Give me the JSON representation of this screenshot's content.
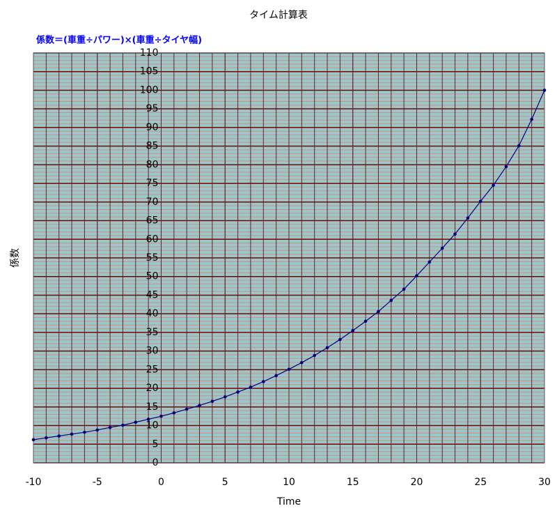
{
  "chart_data": {
    "type": "line",
    "title": "タイム計算表",
    "subtitle": "係数＝(車重÷パワー)×(車重÷タイヤ幅)",
    "x_label": "Time",
    "y_label": "係数",
    "x": [
      -10,
      -9,
      -8,
      -7,
      -6,
      -5,
      -4,
      -3,
      -2,
      -1,
      0,
      1,
      2,
      3,
      4,
      5,
      6,
      7,
      8,
      9,
      10,
      11,
      12,
      13,
      14,
      15,
      16,
      17,
      18,
      19,
      20,
      21,
      22,
      23,
      24,
      25,
      26,
      27,
      28,
      29,
      30
    ],
    "series": [
      {
        "color": "#000080",
        "values": [
          6.2,
          6.7,
          7.2,
          7.7,
          8.2,
          8.8,
          9.5,
          10.1,
          10.9,
          11.7,
          12.5,
          13.4,
          14.4,
          15.4,
          16.5,
          17.7,
          19.0,
          20.3,
          21.8,
          23.4,
          25.1,
          26.9,
          28.8,
          30.9,
          33.1,
          35.5,
          38.0,
          40.6,
          43.6,
          46.6,
          50.2,
          53.9,
          57.6,
          61.4,
          65.7,
          70.2,
          74.5,
          79.5,
          85.1,
          92.2,
          100
        ]
      }
    ],
    "xlim": [
      -10,
      30
    ],
    "xticks": [
      -10,
      -5,
      0,
      5,
      10,
      15,
      20,
      25,
      30
    ],
    "ylim": [
      0,
      110
    ],
    "yticks": [
      0,
      5,
      10,
      15,
      20,
      25,
      30,
      35,
      40,
      45,
      50,
      55,
      60,
      65,
      70,
      75,
      80,
      85,
      90,
      95,
      100,
      105,
      110
    ],
    "grid": true,
    "minor_grid_step": 1
  }
}
